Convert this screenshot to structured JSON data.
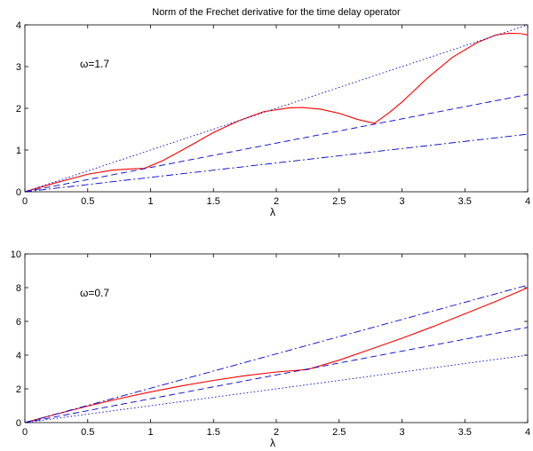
{
  "title": "Norm of the Frechet derivative for the time delay operator",
  "colors": {
    "curve": "#ff0000",
    "lines": "#0000cc",
    "axes": "#000000"
  },
  "chart_data": [
    {
      "type": "line",
      "annotation": "ω=1.7",
      "xlabel": "λ",
      "ylabel": "",
      "xlim": [
        0,
        4
      ],
      "ylim": [
        0,
        4
      ],
      "xticks": [
        "0",
        "0.5",
        "1",
        "1.5",
        "2",
        "2.5",
        "3",
        "3.5",
        "4"
      ],
      "yticks": [
        "0",
        "1",
        "2",
        "3",
        "4"
      ],
      "grid": false,
      "series": [
        {
          "style": "solid",
          "color": "#ff0000",
          "x": [
            0,
            0.25,
            0.5,
            0.7,
            0.85,
            0.95,
            1.1,
            1.3,
            1.5,
            1.7,
            1.9,
            2.1,
            2.2,
            2.35,
            2.5,
            2.65,
            2.78,
            2.9,
            3.0,
            3.2,
            3.4,
            3.6,
            3.75,
            3.85,
            3.95,
            4.0
          ],
          "y": [
            0,
            0.22,
            0.42,
            0.52,
            0.55,
            0.56,
            0.75,
            1.08,
            1.42,
            1.7,
            1.92,
            2.01,
            2.02,
            1.98,
            1.88,
            1.73,
            1.64,
            1.9,
            2.15,
            2.72,
            3.22,
            3.58,
            3.76,
            3.8,
            3.79,
            3.76
          ]
        },
        {
          "style": "dashed",
          "color": "#0000cc",
          "x": [
            0,
            4
          ],
          "y": [
            0,
            2.33
          ]
        },
        {
          "style": "dashdot",
          "color": "#0000cc",
          "x": [
            0,
            4
          ],
          "y": [
            0,
            1.38
          ]
        },
        {
          "style": "dotted",
          "color": "#0000cc",
          "x": [
            0,
            4
          ],
          "y": [
            0,
            4.0
          ]
        }
      ]
    },
    {
      "type": "line",
      "annotation": "ω=0.7",
      "xlabel": "λ",
      "ylabel": "",
      "xlim": [
        0,
        4
      ],
      "ylim": [
        0,
        10
      ],
      "xticks": [
        "0",
        "0.5",
        "1",
        "1.5",
        "2",
        "2.5",
        "3",
        "3.5",
        "4"
      ],
      "yticks": [
        "0",
        "2",
        "4",
        "6",
        "8",
        "10"
      ],
      "grid": false,
      "series": [
        {
          "style": "solid",
          "color": "#ff0000",
          "x": [
            0,
            0.25,
            0.5,
            0.75,
            1.0,
            1.25,
            1.5,
            1.75,
            2.0,
            2.25,
            2.5,
            2.75,
            3.0,
            3.25,
            3.5,
            3.75,
            4.0
          ],
          "y": [
            0,
            0.5,
            0.98,
            1.42,
            1.82,
            2.18,
            2.5,
            2.78,
            3.0,
            3.15,
            3.7,
            4.35,
            5.0,
            5.7,
            6.45,
            7.2,
            8.0
          ]
        },
        {
          "style": "dashed",
          "color": "#0000cc",
          "x": [
            0,
            4
          ],
          "y": [
            0,
            5.65
          ]
        },
        {
          "style": "dashdot",
          "color": "#0000cc",
          "x": [
            0,
            4
          ],
          "y": [
            0,
            8.15
          ]
        },
        {
          "style": "dotted",
          "color": "#0000cc",
          "x": [
            0,
            4
          ],
          "y": [
            0,
            4.0
          ]
        }
      ]
    }
  ]
}
